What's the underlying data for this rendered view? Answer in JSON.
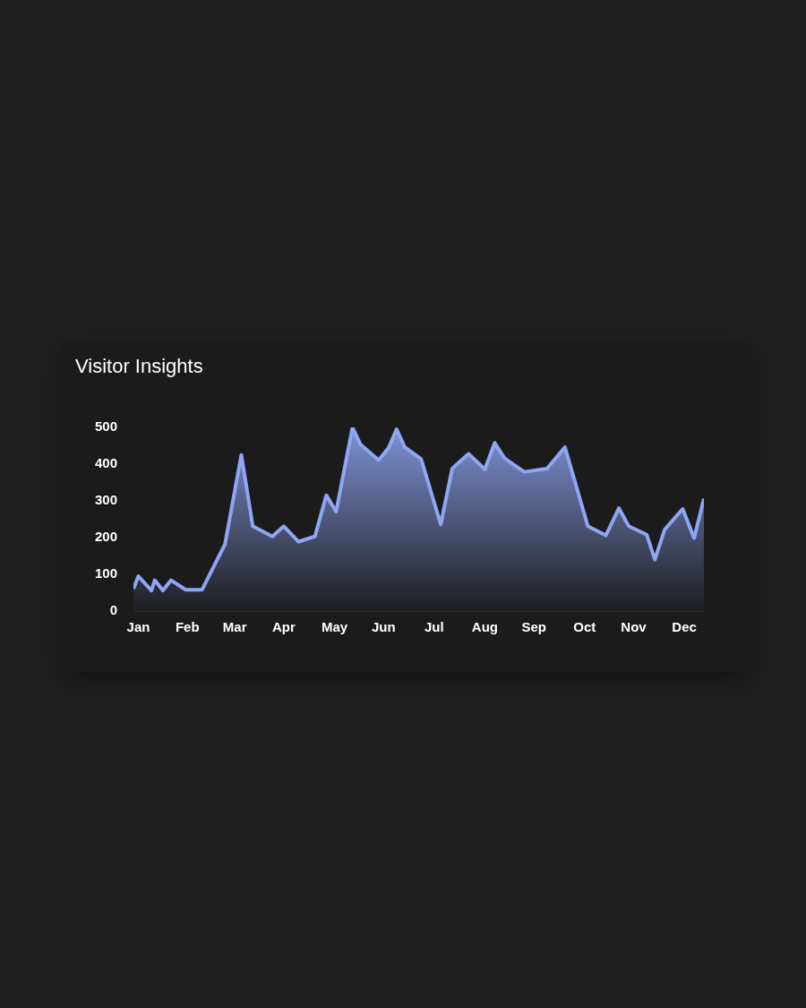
{
  "chart_data": {
    "type": "area",
    "title": "Visitor Insights",
    "x": [
      "--01-13",
      "--01-16",
      "--01-24",
      "--01-26",
      "--01-31",
      "--02-05",
      "--02-14",
      "--02-24",
      "--03-10",
      "--03-20",
      "--03-27",
      "--04-08",
      "--04-15",
      "--04-24",
      "--05-04",
      "--05-11",
      "--05-17",
      "--05-27",
      "--06-01",
      "--06-12",
      "--06-18",
      "--06-23",
      "--06-28",
      "--07-08",
      "--07-20",
      "--07-27",
      "--08-06",
      "--08-16",
      "--08-22",
      "--08-28",
      "--09-09",
      "--09-23",
      "--10-04",
      "--10-18",
      "--10-29",
      "--11-06",
      "--11-12",
      "--11-23",
      "--11-28",
      "--12-04",
      "--12-15",
      "--12-22",
      "--12-28"
    ],
    "series": [
      {
        "color": "#8fa6f5",
        "values": [
          60,
          95,
          56,
          84,
          56,
          84,
          58,
          58,
          182,
          425,
          231,
          203,
          231,
          189,
          203,
          315,
          271,
          500,
          453,
          411,
          444,
          495,
          446,
          414,
          236,
          388,
          428,
          386,
          458,
          416,
          379,
          388,
          446,
          231,
          206,
          280,
          231,
          208,
          140,
          222,
          278,
          199,
          306
        ]
      }
    ],
    "xticks": [
      {
        "value": "--01-16",
        "label": "Jan"
      },
      {
        "value": "--02-15",
        "label": "Feb"
      },
      {
        "value": "--03-16",
        "label": "Mar"
      },
      {
        "value": "--04-15",
        "label": "Apr"
      },
      {
        "value": "--05-16",
        "label": "May"
      },
      {
        "value": "--06-15",
        "label": "Jun"
      },
      {
        "value": "--07-16",
        "label": "Jul"
      },
      {
        "value": "--08-16",
        "label": "Aug"
      },
      {
        "value": "--09-15",
        "label": "Sep"
      },
      {
        "value": "--10-16",
        "label": "Oct"
      },
      {
        "value": "--11-15",
        "label": "Nov"
      },
      {
        "value": "--12-16",
        "label": "Dec"
      }
    ],
    "xlim": [
      "--01-13",
      "--12-28"
    ],
    "ylim": [
      0,
      500
    ],
    "yticks": [
      0,
      100,
      200,
      300,
      400,
      500
    ],
    "grid": false,
    "legend": false,
    "marker": "none",
    "line_style": "solid"
  }
}
